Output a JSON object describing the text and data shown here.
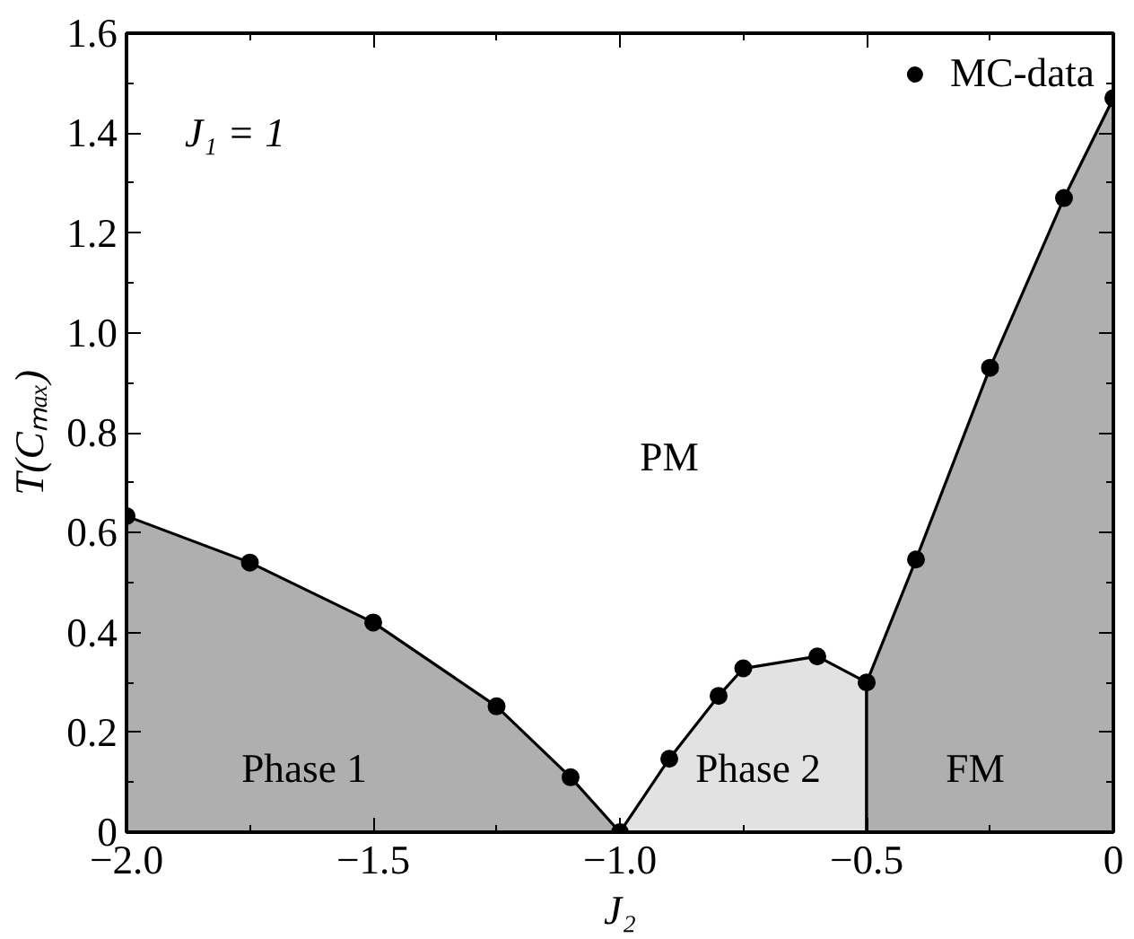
{
  "chart_data": {
    "type": "area",
    "xlabel": "J₂",
    "ylabel": "T(Cₘₐₓ)",
    "xlim": [
      -2,
      0
    ],
    "ylim": [
      0,
      1.6
    ],
    "xticks": [
      {
        "value": -2,
        "label": "−2.0"
      },
      {
        "value": -1.5,
        "label": "−1.5"
      },
      {
        "value": -1,
        "label": "−1.0"
      },
      {
        "value": -0.5,
        "label": "−0.5"
      },
      0
    ],
    "yticks": [
      0,
      0.2,
      0.4,
      0.6,
      0.8,
      {
        "value": 1,
        "label": "1.0"
      },
      1.2,
      1.4,
      1.6
    ],
    "grid": false,
    "legend": "top right",
    "series": [
      {
        "color": "#afafaf",
        "x": [
          -2,
          -1.75,
          -1.5,
          -1.25,
          -1.1,
          -1
        ],
        "values": [
          0.633,
          0.54,
          0.42,
          0.252,
          0.11,
          0
        ]
      },
      {
        "color": "#e2e2e2",
        "x": [
          -1,
          -0.9,
          -0.8,
          -0.75,
          -0.6,
          -0.5
        ],
        "values": [
          0,
          0.147,
          0.273,
          0.328,
          0.352,
          0.3
        ]
      },
      {
        "color": "#afafaf",
        "x": [
          -0.5,
          -0.4,
          -0.25,
          -0.1,
          0
        ],
        "values": [
          0.3,
          0.546,
          0.93,
          1.27,
          1.47
        ]
      },
      {
        "type": "scatter",
        "marker": "circle",
        "name": "MC-data",
        "color": "#000000",
        "x": [
          -2,
          -1.75,
          -1.5,
          -1.25,
          -1.1,
          -1,
          -0.9,
          -0.8,
          -0.75,
          -0.6,
          -0.5,
          -0.4,
          -0.25,
          -0.1,
          0
        ],
        "values": [
          0.633,
          0.54,
          0.42,
          0.252,
          0.11,
          0,
          0.147,
          0.273,
          0.328,
          0.352,
          0.3,
          0.546,
          0.93,
          1.27,
          1.47
        ]
      }
    ],
    "annotations": [
      "J₁ = 1",
      "PM",
      "Phase 1",
      "Phase 2",
      "FM"
    ]
  }
}
